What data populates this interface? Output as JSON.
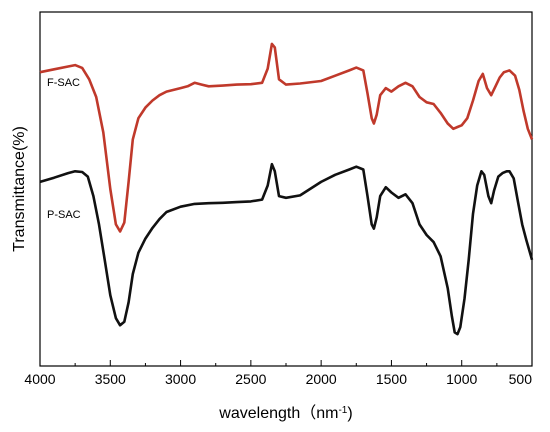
{
  "chart_data": {
    "type": "line",
    "xlabel": "wavelength（nm",
    "xlabel_unit_superscript": "-1",
    "xlabel_close": ")",
    "ylabel": "Transmittance(%)",
    "xlim": [
      4000,
      500
    ],
    "x_reversed": true,
    "x_ticks": [
      4000,
      3500,
      3000,
      2500,
      2000,
      1500,
      1000,
      500
    ],
    "y_ticks_labeled": false,
    "ylim": [
      0,
      100
    ],
    "grid": false,
    "legend": "none",
    "series": [
      {
        "name": "F-SAC",
        "label": "F-SAC",
        "color": "#c0392b",
        "points": [
          [
            4000,
            83.0
          ],
          [
            3900,
            83.8
          ],
          [
            3800,
            84.6
          ],
          [
            3750,
            85.0
          ],
          [
            3700,
            84.2
          ],
          [
            3650,
            81.0
          ],
          [
            3600,
            76.0
          ],
          [
            3550,
            66.0
          ],
          [
            3500,
            50.0
          ],
          [
            3460,
            40.0
          ],
          [
            3430,
            38.0
          ],
          [
            3400,
            40.5
          ],
          [
            3370,
            52.0
          ],
          [
            3340,
            64.0
          ],
          [
            3300,
            70.0
          ],
          [
            3250,
            73.0
          ],
          [
            3200,
            75.0
          ],
          [
            3150,
            76.5
          ],
          [
            3100,
            77.5
          ],
          [
            3000,
            78.5
          ],
          [
            2950,
            79.0
          ],
          [
            2900,
            80.0
          ],
          [
            2850,
            79.5
          ],
          [
            2800,
            79.0
          ],
          [
            2700,
            79.2
          ],
          [
            2600,
            79.5
          ],
          [
            2500,
            79.6
          ],
          [
            2420,
            80.0
          ],
          [
            2380,
            84.0
          ],
          [
            2350,
            91.0
          ],
          [
            2330,
            90.0
          ],
          [
            2300,
            81.0
          ],
          [
            2250,
            79.5
          ],
          [
            2150,
            79.8
          ],
          [
            2000,
            80.5
          ],
          [
            1900,
            82.0
          ],
          [
            1800,
            83.5
          ],
          [
            1750,
            84.3
          ],
          [
            1700,
            83.5
          ],
          [
            1670,
            77.0
          ],
          [
            1640,
            70.0
          ],
          [
            1625,
            68.5
          ],
          [
            1605,
            71.0
          ],
          [
            1580,
            76.5
          ],
          [
            1540,
            78.5
          ],
          [
            1500,
            77.5
          ],
          [
            1450,
            79.0
          ],
          [
            1400,
            80.0
          ],
          [
            1350,
            79.0
          ],
          [
            1300,
            76.0
          ],
          [
            1250,
            74.5
          ],
          [
            1200,
            74.0
          ],
          [
            1150,
            71.5
          ],
          [
            1100,
            68.5
          ],
          [
            1060,
            67.0
          ],
          [
            1030,
            67.5
          ],
          [
            1000,
            68.0
          ],
          [
            960,
            70.0
          ],
          [
            920,
            75.0
          ],
          [
            880,
            80.5
          ],
          [
            850,
            82.5
          ],
          [
            820,
            78.5
          ],
          [
            790,
            76.5
          ],
          [
            760,
            79.0
          ],
          [
            730,
            81.5
          ],
          [
            700,
            83.0
          ],
          [
            660,
            83.5
          ],
          [
            620,
            82.0
          ],
          [
            590,
            78.0
          ],
          [
            560,
            72.0
          ],
          [
            530,
            67.0
          ],
          [
            500,
            64.0
          ]
        ]
      },
      {
        "name": "P-SAC",
        "label": "P-SAC",
        "color": "#111111",
        "points": [
          [
            4000,
            52.0
          ],
          [
            3900,
            53.2
          ],
          [
            3800,
            54.5
          ],
          [
            3750,
            55.0
          ],
          [
            3700,
            54.8
          ],
          [
            3660,
            53.5
          ],
          [
            3620,
            48.0
          ],
          [
            3580,
            40.0
          ],
          [
            3540,
            30.0
          ],
          [
            3500,
            20.0
          ],
          [
            3460,
            13.5
          ],
          [
            3430,
            11.5
          ],
          [
            3400,
            12.5
          ],
          [
            3370,
            18.0
          ],
          [
            3340,
            26.0
          ],
          [
            3300,
            32.0
          ],
          [
            3250,
            36.0
          ],
          [
            3200,
            39.0
          ],
          [
            3150,
            41.5
          ],
          [
            3100,
            43.5
          ],
          [
            3000,
            45.0
          ],
          [
            2900,
            45.8
          ],
          [
            2800,
            46.0
          ],
          [
            2700,
            46.1
          ],
          [
            2600,
            46.3
          ],
          [
            2500,
            46.5
          ],
          [
            2420,
            47.0
          ],
          [
            2380,
            51.0
          ],
          [
            2350,
            57.0
          ],
          [
            2330,
            55.0
          ],
          [
            2300,
            48.0
          ],
          [
            2250,
            47.5
          ],
          [
            2150,
            48.2
          ],
          [
            2000,
            52.0
          ],
          [
            1900,
            54.0
          ],
          [
            1800,
            55.5
          ],
          [
            1750,
            56.3
          ],
          [
            1700,
            55.5
          ],
          [
            1670,
            48.0
          ],
          [
            1640,
            40.0
          ],
          [
            1625,
            38.8
          ],
          [
            1605,
            42.0
          ],
          [
            1580,
            48.0
          ],
          [
            1540,
            50.5
          ],
          [
            1500,
            49.0
          ],
          [
            1450,
            47.5
          ],
          [
            1400,
            48.5
          ],
          [
            1350,
            46.0
          ],
          [
            1300,
            40.0
          ],
          [
            1250,
            37.0
          ],
          [
            1200,
            35.0
          ],
          [
            1150,
            31.0
          ],
          [
            1100,
            22.0
          ],
          [
            1070,
            14.0
          ],
          [
            1050,
            9.5
          ],
          [
            1030,
            9.0
          ],
          [
            1010,
            11.0
          ],
          [
            980,
            19.0
          ],
          [
            950,
            30.0
          ],
          [
            920,
            43.0
          ],
          [
            890,
            51.0
          ],
          [
            860,
            55.0
          ],
          [
            840,
            54.0
          ],
          [
            810,
            48.0
          ],
          [
            790,
            46.0
          ],
          [
            770,
            49.5
          ],
          [
            740,
            53.5
          ],
          [
            710,
            54.5
          ],
          [
            680,
            55.0
          ],
          [
            660,
            55.0
          ],
          [
            630,
            53.0
          ],
          [
            600,
            46.5
          ],
          [
            570,
            40.0
          ],
          [
            540,
            35.5
          ],
          [
            500,
            30.0
          ]
        ]
      }
    ]
  }
}
